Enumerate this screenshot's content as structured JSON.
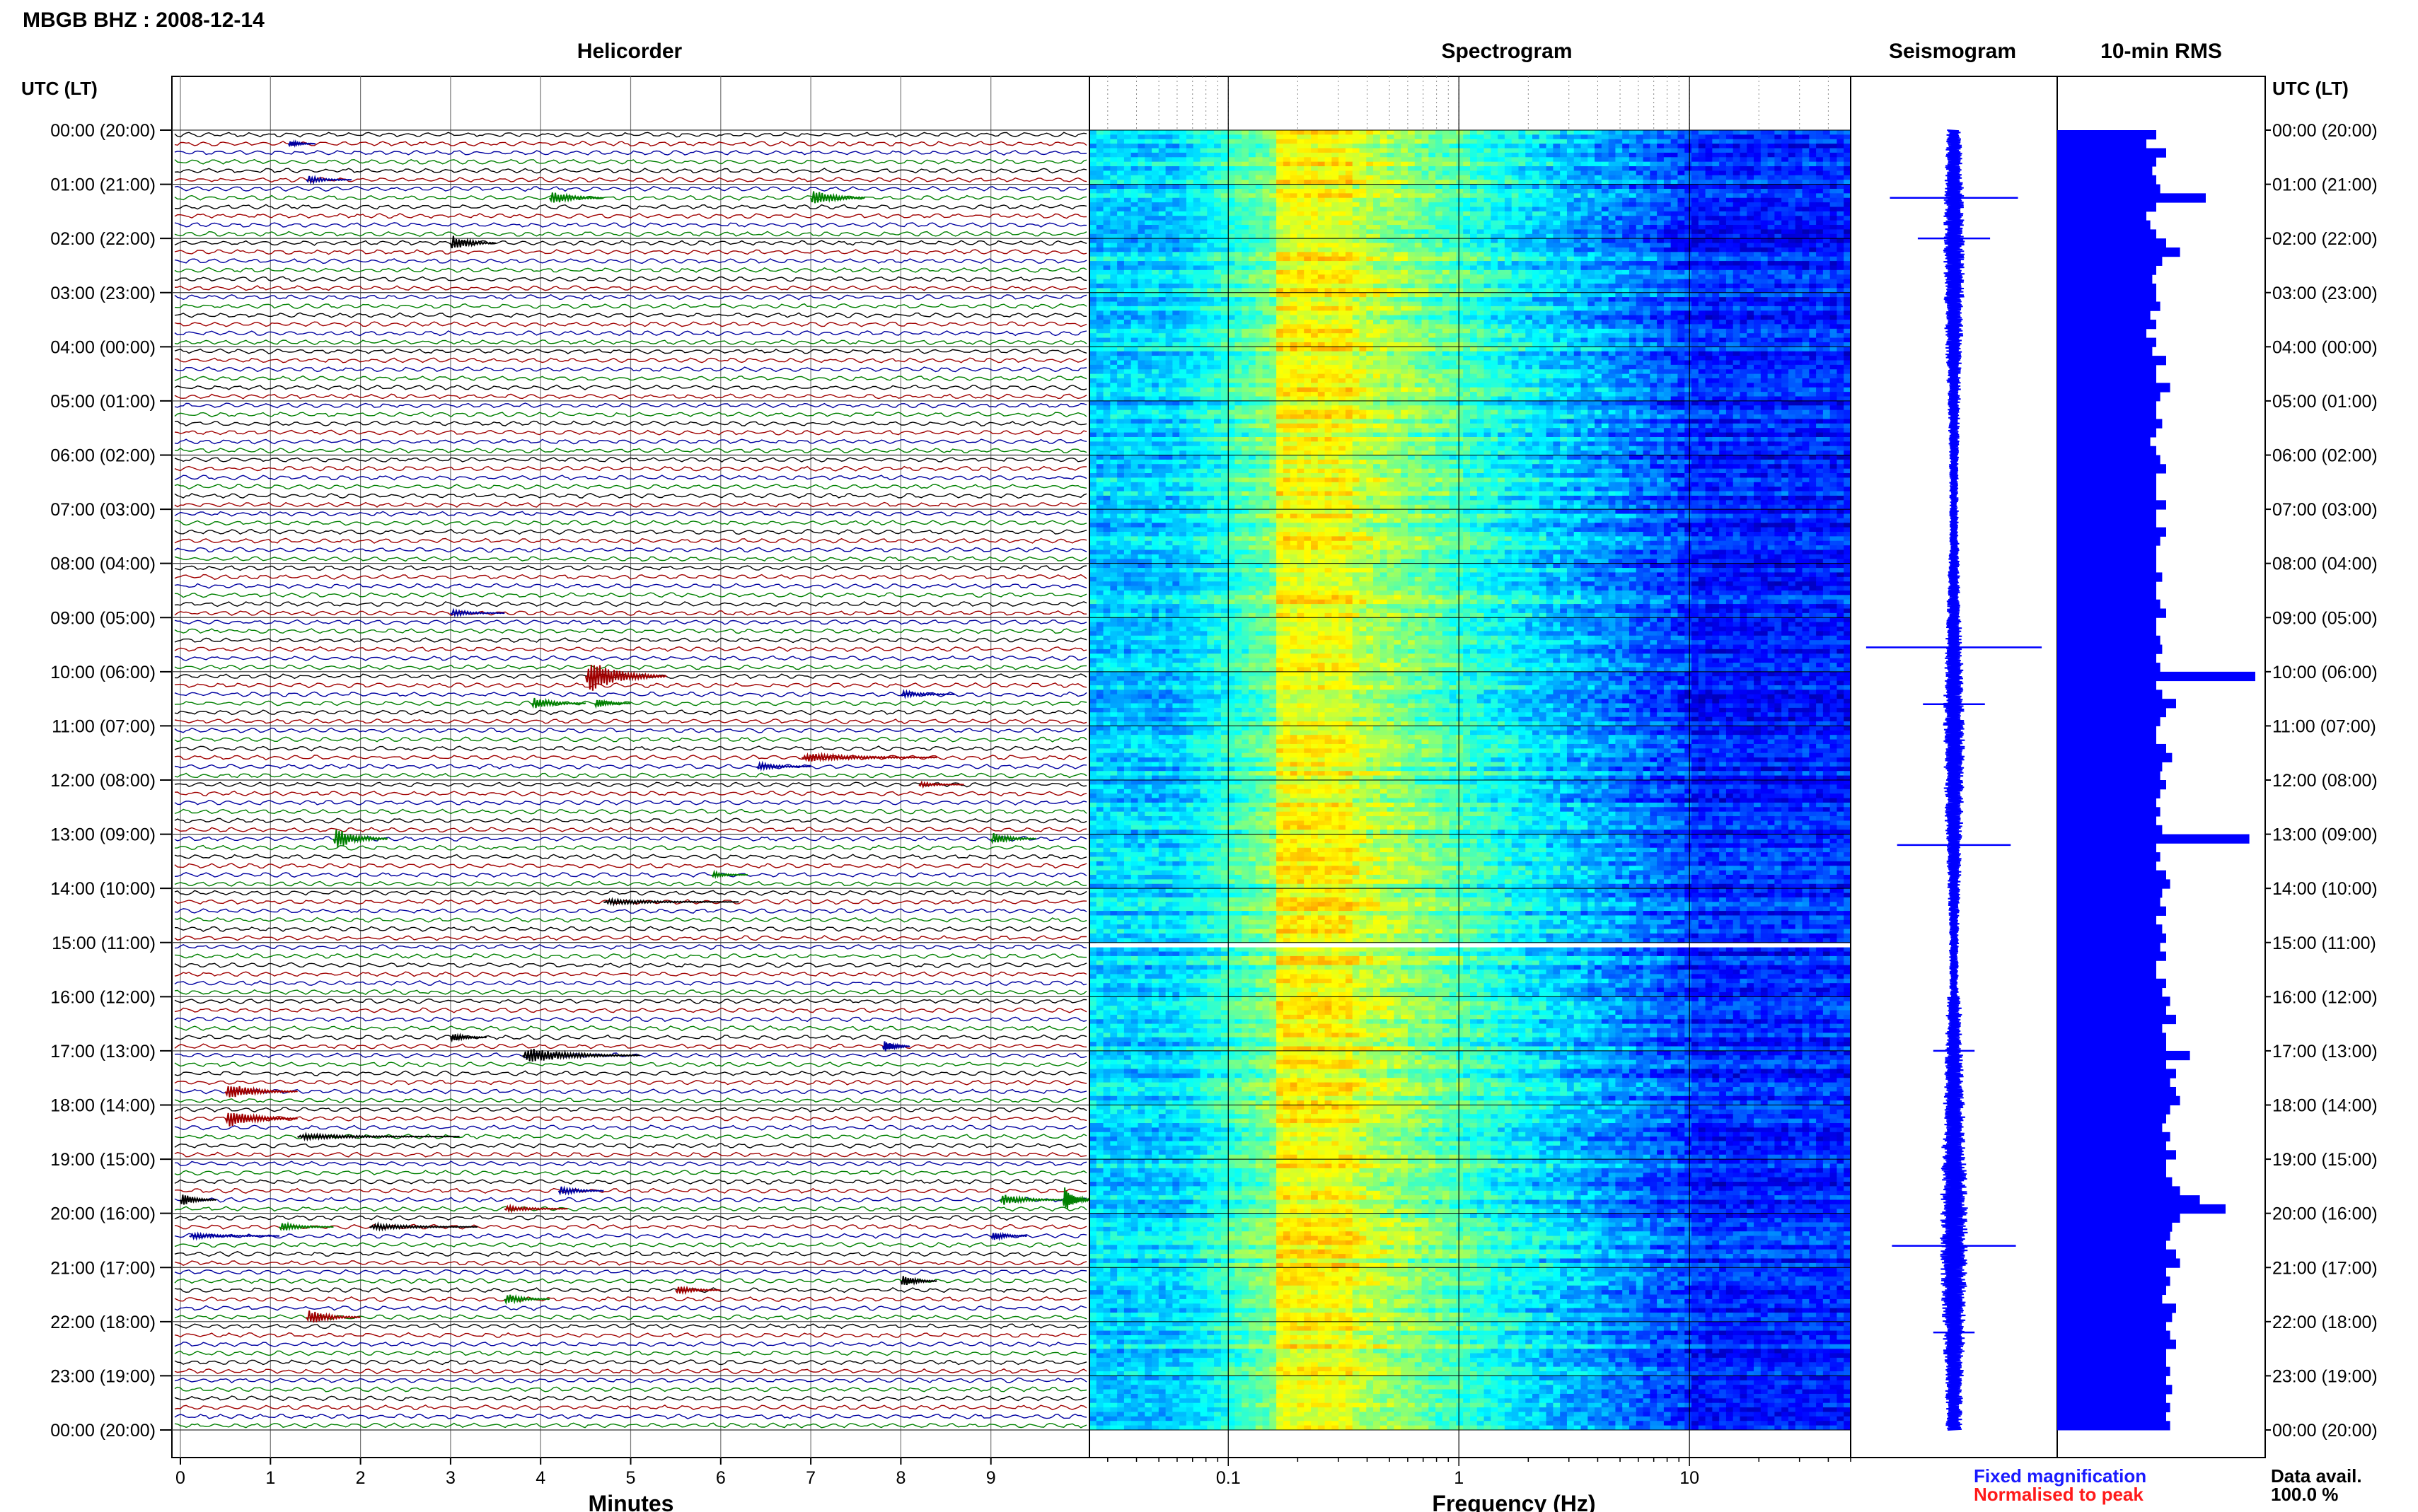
{
  "header": {
    "station_title": "MBGB BHZ : 2008-12-14"
  },
  "panels": {
    "helicorder_title": "Helicorder",
    "spectrogram_title": "Spectrogram",
    "seismogram_title": "Seismogram",
    "rms_title": "10-min RMS"
  },
  "axes": {
    "left_time_label": "UTC (LT)",
    "right_time_label": "UTC (LT)",
    "minutes_label": "Minutes",
    "frequency_label": "Frequency (Hz)",
    "hour_ticks": [
      "00:00 (20:00)",
      "01:00 (21:00)",
      "02:00 (22:00)",
      "03:00 (23:00)",
      "04:00 (00:00)",
      "05:00 (01:00)",
      "06:00 (02:00)",
      "07:00 (03:00)",
      "08:00 (04:00)",
      "09:00 (05:00)",
      "10:00 (06:00)",
      "11:00 (07:00)",
      "12:00 (08:00)",
      "13:00 (09:00)",
      "14:00 (10:00)",
      "15:00 (11:00)",
      "16:00 (12:00)",
      "17:00 (13:00)",
      "18:00 (14:00)",
      "19:00 (15:00)",
      "20:00 (16:00)",
      "21:00 (17:00)",
      "22:00 (18:00)",
      "23:00 (19:00)",
      "00:00 (20:00)"
    ],
    "minute_ticks": [
      "0",
      "1",
      "2",
      "3",
      "4",
      "5",
      "6",
      "7",
      "8",
      "9"
    ],
    "frequency_ticks": [
      "0.1",
      "1",
      "10"
    ]
  },
  "legend": {
    "fixed_label": "Fixed magnification",
    "fixed_color": "#1a1aff",
    "normalised_label": "Normalised to peak",
    "normalised_color": "#ff1a1a"
  },
  "availability": {
    "label": "Data avail.",
    "value": "100.0 %"
  },
  "colors": {
    "trace_colors": [
      "#000000",
      "#a00000",
      "#0000a0",
      "#008000"
    ],
    "rms_bar": "#0000ff",
    "seismogram": "#0000ff"
  },
  "chart_data": {
    "type": "heatmap",
    "helicorder": {
      "rows_per_hour": 6,
      "minutes_range": [
        0,
        10
      ],
      "events": [
        {
          "row": 1,
          "minute": 1.2,
          "color_index": 2,
          "amp": 0.6,
          "dur": 0.3
        },
        {
          "row": 5,
          "minute": 1.4,
          "color_index": 2,
          "amp": 0.7,
          "dur": 0.5
        },
        {
          "row": 7,
          "minute": 4.1,
          "color_index": 3,
          "amp": 1.2,
          "dur": 0.6
        },
        {
          "row": 7,
          "minute": 7.0,
          "color_index": 3,
          "amp": 1.6,
          "dur": 0.6
        },
        {
          "row": 12,
          "minute": 3.0,
          "color_index": 0,
          "amp": 1.5,
          "dur": 0.5
        },
        {
          "row": 53,
          "minute": 3.0,
          "color_index": 2,
          "amp": 0.6,
          "dur": 0.6
        },
        {
          "row": 60,
          "minute": 4.5,
          "color_index": 1,
          "amp": 3.0,
          "dur": 0.9
        },
        {
          "row": 62,
          "minute": 8.0,
          "color_index": 2,
          "amp": 0.6,
          "dur": 0.6
        },
        {
          "row": 63,
          "minute": 3.9,
          "color_index": 3,
          "amp": 1.0,
          "dur": 0.6
        },
        {
          "row": 63,
          "minute": 4.6,
          "color_index": 3,
          "amp": 0.9,
          "dur": 0.4
        },
        {
          "row": 69,
          "minute": 6.9,
          "color_index": 1,
          "amp": 0.8,
          "dur": 1.5
        },
        {
          "row": 70,
          "minute": 6.4,
          "color_index": 2,
          "amp": 0.7,
          "dur": 0.6
        },
        {
          "row": 72,
          "minute": 8.2,
          "color_index": 1,
          "amp": 0.5,
          "dur": 0.5
        },
        {
          "row": 78,
          "minute": 1.7,
          "color_index": 3,
          "amp": 2.0,
          "dur": 0.6
        },
        {
          "row": 78,
          "minute": 9.0,
          "color_index": 3,
          "amp": 1.2,
          "dur": 0.5
        },
        {
          "row": 82,
          "minute": 5.9,
          "color_index": 3,
          "amp": 0.6,
          "dur": 0.4
        },
        {
          "row": 85,
          "minute": 4.7,
          "color_index": 0,
          "amp": 0.5,
          "dur": 1.5
        },
        {
          "row": 100,
          "minute": 3.0,
          "color_index": 0,
          "amp": 0.8,
          "dur": 0.4
        },
        {
          "row": 101,
          "minute": 7.8,
          "color_index": 2,
          "amp": 1.2,
          "dur": 0.3
        },
        {
          "row": 102,
          "minute": 3.8,
          "color_index": 0,
          "amp": 1.4,
          "dur": 1.3
        },
        {
          "row": 106,
          "minute": 0.5,
          "color_index": 1,
          "amp": 1.5,
          "dur": 0.8
        },
        {
          "row": 111,
          "minute": 1.3,
          "color_index": 0,
          "amp": 0.5,
          "dur": 1.8
        },
        {
          "row": 118,
          "minute": 0.0,
          "color_index": 0,
          "amp": 1.2,
          "dur": 0.4
        },
        {
          "row": 118,
          "minute": 9.1,
          "color_index": 3,
          "amp": 1.0,
          "dur": 0.7
        },
        {
          "row": 118,
          "minute": 9.8,
          "color_index": 3,
          "amp": 2.5,
          "dur": 0.3
        },
        {
          "row": 119,
          "minute": 3.6,
          "color_index": 1,
          "amp": 0.6,
          "dur": 0.7
        },
        {
          "row": 117,
          "minute": 4.2,
          "color_index": 2,
          "amp": 0.9,
          "dur": 0.5
        },
        {
          "row": 121,
          "minute": 1.1,
          "color_index": 3,
          "amp": 0.8,
          "dur": 0.6
        },
        {
          "row": 121,
          "minute": 2.1,
          "color_index": 0,
          "amp": 0.6,
          "dur": 1.2
        },
        {
          "row": 122,
          "minute": 0.1,
          "color_index": 2,
          "amp": 0.5,
          "dur": 1.0
        },
        {
          "row": 122,
          "minute": 9.0,
          "color_index": 2,
          "amp": 0.9,
          "dur": 0.4
        },
        {
          "row": 127,
          "minute": 8.0,
          "color_index": 0,
          "amp": 1.2,
          "dur": 0.4
        },
        {
          "row": 128,
          "minute": 5.5,
          "color_index": 1,
          "amp": 0.8,
          "dur": 0.5
        },
        {
          "row": 129,
          "minute": 3.6,
          "color_index": 3,
          "amp": 1.0,
          "dur": 0.5
        },
        {
          "row": 131,
          "minute": 1.4,
          "color_index": 1,
          "amp": 1.4,
          "dur": 0.6
        },
        {
          "row": 109,
          "minute": 0.5,
          "color_index": 1,
          "amp": 1.6,
          "dur": 0.8
        }
      ]
    },
    "spectrogram": {
      "freq_range_hz": [
        0.025,
        50
      ],
      "peak_band_hz": [
        0.15,
        0.35
      ],
      "gap_hour": 15.05
    },
    "rms": {
      "unit": "relative",
      "values": [
        0.5,
        0.45,
        0.55,
        0.5,
        0.48,
        0.5,
        0.52,
        0.75,
        0.5,
        0.45,
        0.47,
        0.5,
        0.55,
        0.62,
        0.53,
        0.5,
        0.48,
        0.5,
        0.5,
        0.52,
        0.47,
        0.5,
        0.45,
        0.5,
        0.48,
        0.55,
        0.5,
        0.5,
        0.57,
        0.52,
        0.5,
        0.5,
        0.53,
        0.5,
        0.47,
        0.5,
        0.52,
        0.55,
        0.5,
        0.5,
        0.5,
        0.55,
        0.5,
        0.5,
        0.55,
        0.52,
        0.5,
        0.5,
        0.5,
        0.53,
        0.5,
        0.5,
        0.52,
        0.55,
        0.5,
        0.5,
        0.52,
        0.53,
        0.5,
        0.52,
        1.0,
        0.5,
        0.53,
        0.6,
        0.55,
        0.52,
        0.5,
        0.5,
        0.55,
        0.58,
        0.53,
        0.52,
        0.55,
        0.52,
        0.5,
        0.52,
        0.5,
        0.53,
        0.97,
        0.5,
        0.52,
        0.5,
        0.55,
        0.57,
        0.53,
        0.52,
        0.55,
        0.5,
        0.53,
        0.55,
        0.52,
        0.55,
        0.5,
        0.5,
        0.55,
        0.53,
        0.57,
        0.55,
        0.6,
        0.53,
        0.55,
        0.55,
        0.67,
        0.55,
        0.6,
        0.57,
        0.6,
        0.62,
        0.57,
        0.55,
        0.53,
        0.57,
        0.55,
        0.6,
        0.55,
        0.55,
        0.58,
        0.62,
        0.72,
        0.85,
        0.62,
        0.58,
        0.57,
        0.55,
        0.6,
        0.62,
        0.55,
        0.57,
        0.55,
        0.53,
        0.6,
        0.58,
        0.55,
        0.57,
        0.6,
        0.55,
        0.55,
        0.57,
        0.55,
        0.58,
        0.55,
        0.57,
        0.55,
        0.57
      ]
    },
    "seismogram": {
      "spikes": [
        {
          "hour": 1.25,
          "amp": 0.62
        },
        {
          "hour": 2.0,
          "amp": 0.35
        },
        {
          "hour": 9.55,
          "amp": 0.85
        },
        {
          "hour": 10.6,
          "amp": 0.3
        },
        {
          "hour": 13.2,
          "amp": 0.55
        },
        {
          "hour": 17.0,
          "amp": 0.2
        },
        {
          "hour": 20.6,
          "amp": 0.6
        },
        {
          "hour": 22.2,
          "amp": 0.2
        }
      ]
    }
  }
}
